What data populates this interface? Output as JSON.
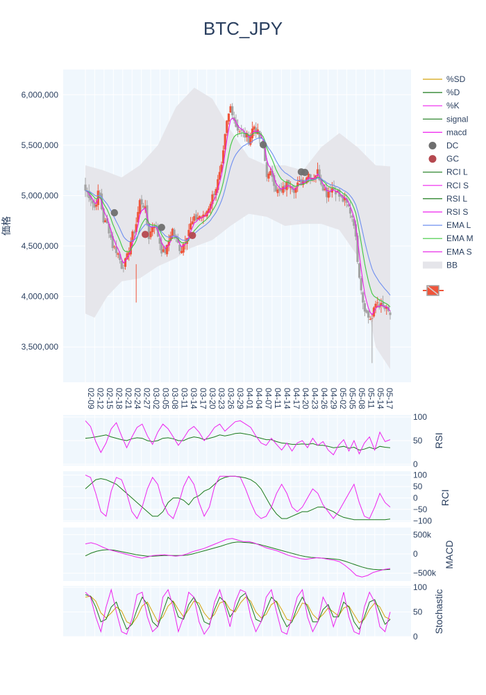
{
  "chart_data": {
    "type": "candlestick",
    "title": "BTC_JPY",
    "colors": {
      "up": "#ef553b",
      "down": "#a3a3a3",
      "bb": "#e5e5ea",
      "ema_l": "#6f8ff0",
      "ema_m": "#3ec93e",
      "ema_s": "#e619e6",
      "rsi_l": "#1a7a1a",
      "rsi_s": "#ee22ee",
      "dc": "#6f6f6f",
      "gc": "#b5484f",
      "sd": "#d4a20a",
      "plot_bg": "#f0f7fd",
      "grid": "#ffffff"
    },
    "price_panel": {
      "ylabel": "価格",
      "ylim": [
        3150000,
        6250000
      ],
      "yticks": [
        3500000,
        4000000,
        4500000,
        5000000,
        5500000,
        6000000
      ],
      "ytick_labels": [
        "3,500,000",
        "4,000,000",
        "4,500,000",
        "5,000,000",
        "5,500,000",
        "6,000,000"
      ],
      "xtick_labels": [
        "02-09",
        "02-12",
        "02-15",
        "02-18",
        "02-21",
        "02-24",
        "02-27",
        "03-02",
        "03-05",
        "03-08",
        "03-11",
        "03-14",
        "03-17",
        "03-20",
        "03-23",
        "03-26",
        "03-29",
        "04-01",
        "04-04",
        "04-07",
        "04-11",
        "04-14",
        "04-17",
        "04-20",
        "04-23",
        "04-26",
        "04-29",
        "05-02",
        "05-05",
        "05-08",
        "05-11",
        "05-14",
        "05-17"
      ],
      "trend_points": [
        5050000,
        5000000,
        4880000,
        5050000,
        4750000,
        4700000,
        4500000,
        4450000,
        4300000,
        4350000,
        4560000,
        4680000,
        4950000,
        4900000,
        4580000,
        4750000,
        4600000,
        4420000,
        4480000,
        4680000,
        4550000,
        4460000,
        4580000,
        4700000,
        4760000,
        4800000,
        4780000,
        4880000,
        5000000,
        5120000,
        5280000,
        5700000,
        5900000,
        5700000,
        5640000,
        5600000,
        5560000,
        5700000,
        5600000,
        5500000,
        5180000,
        5220000,
        5050000,
        5020000,
        5100000,
        5130000,
        5060000,
        5120000,
        5160000,
        5220000,
        5180000,
        5240000,
        5120000,
        5020000,
        5080000,
        5060000,
        4980000,
        4940000,
        4870000,
        4750000,
        4300000,
        3960000,
        3800000,
        3780000,
        3960000,
        3900000,
        3870000,
        3820000
      ],
      "bb_upper_anchors": [
        [
          0,
          5300000
        ],
        [
          10,
          5250000
        ],
        [
          20,
          5180000
        ],
        [
          30,
          5300000
        ],
        [
          40,
          5500000
        ],
        [
          50,
          5880000
        ],
        [
          60,
          6070000
        ],
        [
          70,
          5960000
        ],
        [
          80,
          5650000
        ],
        [
          90,
          5380000
        ],
        [
          100,
          5300000
        ],
        [
          110,
          5300000
        ],
        [
          120,
          5250000
        ],
        [
          130,
          5480000
        ],
        [
          140,
          5620000
        ],
        [
          150,
          5480000
        ],
        [
          160,
          5300000
        ],
        [
          168,
          5290000
        ]
      ],
      "bb_lower_anchors": [
        [
          0,
          3830000
        ],
        [
          5,
          3790000
        ],
        [
          12,
          4000000
        ],
        [
          20,
          4150000
        ],
        [
          30,
          4180000
        ],
        [
          40,
          4300000
        ],
        [
          50,
          4380000
        ],
        [
          58,
          4480000
        ],
        [
          70,
          4560000
        ],
        [
          80,
          4700000
        ],
        [
          90,
          4820000
        ],
        [
          100,
          4790000
        ],
        [
          110,
          4700000
        ],
        [
          120,
          4720000
        ],
        [
          130,
          4720000
        ],
        [
          140,
          4660000
        ],
        [
          150,
          4400000
        ],
        [
          160,
          3500000
        ],
        [
          168,
          3280000
        ]
      ],
      "signals": [
        {
          "type": "DC",
          "x": 16,
          "y": 4830000
        },
        {
          "type": "GC",
          "x": 33,
          "y": 4615000
        },
        {
          "type": "DC",
          "x": 42,
          "y": 4685000
        },
        {
          "type": "GC",
          "x": 59,
          "y": 4605000
        },
        {
          "type": "DC",
          "x": 98,
          "y": 5505000
        },
        {
          "type": "DC",
          "x": 119,
          "y": 5235000
        },
        {
          "type": "DC",
          "x": 121,
          "y": 5230000
        }
      ]
    },
    "rsi_panel": {
      "ylabel": "RSI",
      "ylim": [
        0,
        100
      ],
      "yticks": [
        0,
        50,
        100
      ],
      "ytick_labels": [
        "0",
        "50",
        "100"
      ],
      "rsi_s": [
        92,
        80,
        48,
        25,
        45,
        75,
        88,
        60,
        35,
        58,
        78,
        85,
        60,
        42,
        68,
        85,
        75,
        58,
        40,
        55,
        72,
        80,
        68,
        50,
        62,
        78,
        85,
        70,
        80,
        90,
        92,
        85,
        78,
        60,
        45,
        40,
        55,
        42,
        30,
        45,
        28,
        45,
        50,
        35,
        55,
        40,
        48,
        30,
        20,
        40,
        52,
        28,
        50,
        22,
        45,
        58,
        30,
        68,
        48,
        52
      ],
      "rsi_l": [
        55,
        56,
        58,
        60,
        62,
        58,
        55,
        52,
        50,
        54,
        56,
        55,
        50,
        48,
        50,
        55,
        56,
        54,
        50,
        50,
        55,
        58,
        56,
        52,
        55,
        58,
        62,
        60,
        62,
        65,
        66,
        64,
        62,
        58,
        55,
        52,
        52,
        48,
        45,
        44,
        42,
        42,
        43,
        42,
        44,
        40,
        40,
        38,
        35,
        36,
        38,
        34,
        36,
        30,
        32,
        36,
        32,
        38,
        36,
        35
      ]
    },
    "rci_panel": {
      "ylabel": "RCI",
      "ylim": [
        -105,
        105
      ],
      "yticks": [
        -100,
        -50,
        0,
        50,
        100
      ],
      "ytick_labels": [
        "−100",
        "−50",
        "0",
        "50",
        "100"
      ],
      "rci_s": [
        100,
        90,
        20,
        -60,
        -80,
        30,
        90,
        80,
        20,
        -60,
        -90,
        -40,
        40,
        90,
        60,
        -20,
        -70,
        -90,
        -30,
        50,
        95,
        60,
        -20,
        -80,
        -40,
        50,
        95,
        95,
        95,
        95,
        90,
        40,
        -20,
        -70,
        -90,
        -80,
        -40,
        20,
        60,
        20,
        -40,
        -60,
        -40,
        0,
        40,
        20,
        -30,
        -60,
        -90,
        -60,
        -20,
        20,
        60,
        -20,
        -80,
        -90,
        -40,
        20,
        -20,
        -40
      ],
      "rci_l": [
        40,
        60,
        80,
        85,
        80,
        70,
        60,
        40,
        20,
        0,
        -20,
        -40,
        -60,
        -80,
        -80,
        -60,
        -20,
        0,
        0,
        -10,
        -30,
        0,
        10,
        30,
        40,
        60,
        80,
        90,
        95,
        95,
        92,
        88,
        80,
        65,
        40,
        0,
        -40,
        -70,
        -90,
        -90,
        -80,
        -70,
        -60,
        -60,
        -50,
        -40,
        -40,
        -50,
        -60,
        -75,
        -85,
        -90,
        -95,
        -95,
        -95,
        -95,
        -95,
        -95,
        -95,
        -92
      ]
    },
    "macd_panel": {
      "ylabel": "MACD",
      "ylim": [
        -650000,
        650000
      ],
      "yticks": [
        -500000,
        0,
        500000
      ],
      "ytick_labels": [
        "−500k",
        "0",
        "500k"
      ],
      "macd": [
        260000,
        290000,
        250000,
        180000,
        120000,
        80000,
        40000,
        0,
        -40000,
        -80000,
        -110000,
        -80000,
        -40000,
        -30000,
        -20000,
        -40000,
        -60000,
        -40000,
        0,
        60000,
        100000,
        140000,
        200000,
        260000,
        320000,
        380000,
        400000,
        360000,
        320000,
        320000,
        280000,
        220000,
        160000,
        120000,
        80000,
        20000,
        -40000,
        -80000,
        -120000,
        -140000,
        -120000,
        -100000,
        -110000,
        -140000,
        -160000,
        -200000,
        -300000,
        -420000,
        -560000,
        -600000,
        -560000,
        -480000,
        -440000,
        -400000,
        -380000
      ],
      "signal": [
        -50000,
        20000,
        70000,
        100000,
        110000,
        100000,
        70000,
        40000,
        10000,
        -20000,
        -40000,
        -60000,
        -60000,
        -50000,
        -40000,
        -40000,
        -40000,
        -40000,
        -30000,
        0,
        40000,
        80000,
        120000,
        160000,
        200000,
        250000,
        290000,
        310000,
        300000,
        290000,
        270000,
        240000,
        200000,
        160000,
        120000,
        80000,
        40000,
        0,
        -40000,
        -70000,
        -90000,
        -100000,
        -110000,
        -120000,
        -130000,
        -150000,
        -190000,
        -240000,
        -290000,
        -340000,
        -380000,
        -400000,
        -410000,
        -410000,
        -400000
      ]
    },
    "stoch_panel": {
      "ylabel": "Stochastic",
      "ylim": [
        0,
        100
      ],
      "yticks": [
        0,
        50,
        100
      ],
      "ytick_labels": [
        "0",
        "50",
        "100"
      ],
      "k": [
        90,
        80,
        40,
        10,
        60,
        95,
        50,
        10,
        5,
        35,
        85,
        90,
        40,
        10,
        20,
        80,
        95,
        60,
        10,
        40,
        90,
        80,
        30,
        5,
        20,
        70,
        95,
        60,
        20,
        70,
        95,
        90,
        40,
        10,
        30,
        80,
        95,
        50,
        10,
        5,
        40,
        80,
        95,
        40,
        10,
        30,
        80,
        60,
        20,
        50,
        90,
        40,
        10,
        5,
        60,
        90,
        70,
        20,
        10,
        50
      ],
      "d": [
        85,
        82,
        60,
        30,
        35,
        60,
        70,
        40,
        15,
        25,
        55,
        80,
        65,
        30,
        20,
        50,
        80,
        70,
        40,
        35,
        65,
        80,
        60,
        30,
        25,
        55,
        80,
        70,
        40,
        55,
        80,
        88,
        65,
        35,
        30,
        55,
        80,
        70,
        40,
        20,
        30,
        60,
        80,
        60,
        30,
        30,
        55,
        65,
        40,
        40,
        70,
        60,
        30,
        15,
        40,
        70,
        75,
        50,
        25,
        35
      ],
      "sd": [
        80,
        82,
        72,
        48,
        38,
        48,
        60,
        52,
        30,
        25,
        40,
        62,
        70,
        50,
        30,
        40,
        62,
        72,
        55,
        40,
        55,
        72,
        68,
        48,
        35,
        45,
        68,
        72,
        55,
        50,
        68,
        80,
        72,
        50,
        38,
        45,
        65,
        72,
        55,
        35,
        32,
        48,
        68,
        65,
        45,
        35,
        45,
        58,
        50,
        42,
        58,
        62,
        45,
        28,
        35,
        55,
        68,
        60,
        40,
        35
      ]
    },
    "legend": {
      "entries": [
        "%SD",
        "%D",
        "%K",
        "signal",
        "macd",
        "DC",
        "GC",
        "RCI L",
        "RCI S",
        "RSI L",
        "RSI S",
        "EMA L",
        "EMA M",
        "EMA S",
        "BB"
      ]
    }
  }
}
